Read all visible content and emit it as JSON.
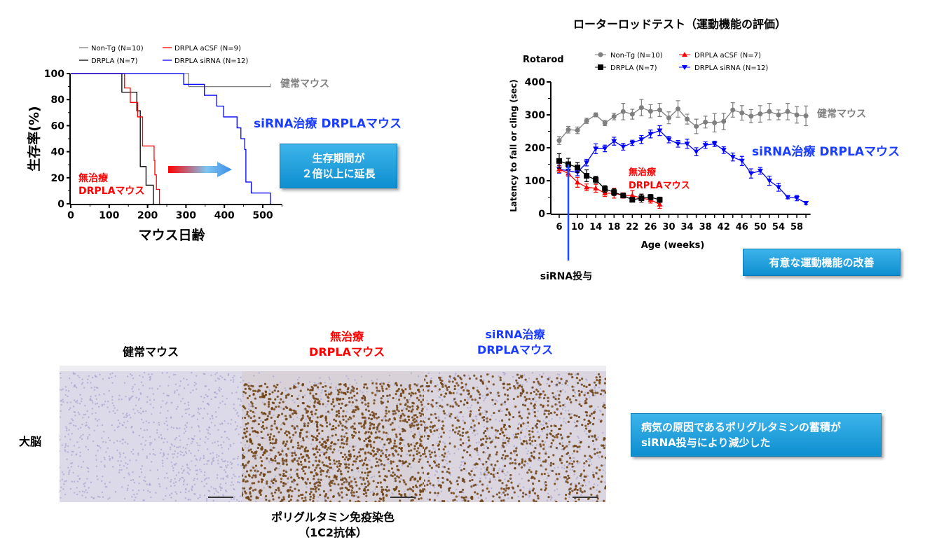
{
  "colors": {
    "nonTg": "#7f7f7f",
    "drpla": "#000000",
    "acsf": "#ff0000",
    "sirna": "#0000ff",
    "box": "#1a9ad8"
  },
  "chart_data": [
    {
      "type": "line",
      "subtype": "kaplan-meier step",
      "xlabel": "マウス日齢",
      "ylabel": "生存率(%)",
      "xlim": [
        0,
        550
      ],
      "ylim": [
        0,
        100
      ],
      "xticks": [
        "0",
        "100",
        "200",
        "300",
        "400",
        "500"
      ],
      "yticks": [
        "0",
        "20",
        "40",
        "60",
        "80",
        "100"
      ],
      "legend_placement": "top",
      "series": [
        {
          "name": "Non-Tg (N=10)",
          "color": "#7f7f7f",
          "steps": [
            [
              0,
              100
            ],
            [
              307,
              90
            ],
            [
              520,
              90
            ]
          ]
        },
        {
          "name": "DRPLA (N=7)",
          "color": "#000000",
          "steps": [
            [
              0,
              100
            ],
            [
              133,
              85.7
            ],
            [
              172,
              71.4
            ],
            [
              181,
              28.6
            ],
            [
              196,
              14.3
            ],
            [
              215,
              0
            ]
          ]
        },
        {
          "name": "DRPLA aCSF (N=9)",
          "color": "#ff0000",
          "steps": [
            [
              0,
              100
            ],
            [
              140,
              88.9
            ],
            [
              155,
              77.8
            ],
            [
              174,
              66.7
            ],
            [
              187,
              44.4
            ],
            [
              217,
              33.3
            ],
            [
              219,
              22.2
            ],
            [
              223,
              11.1
            ],
            [
              231,
              0
            ]
          ]
        },
        {
          "name": "DRPLA siRNA (N=12)",
          "color": "#0000ff",
          "steps": [
            [
              0,
              100
            ],
            [
              294,
              91.7
            ],
            [
              348,
              83.3
            ],
            [
              380,
              75
            ],
            [
              398,
              66.7
            ],
            [
              433,
              58.3
            ],
            [
              443,
              50
            ],
            [
              453,
              41.7
            ],
            [
              456,
              16.7
            ],
            [
              470,
              8.3
            ],
            [
              520,
              0
            ]
          ]
        }
      ],
      "annotations": {
        "healthy": "健常マウス",
        "sirna": "siRNA治療 DRPLAマウス",
        "untreated_1": "無治療",
        "untreated_2": "DRPLAマウス"
      }
    },
    {
      "type": "line",
      "title": "ローターロッドテスト（運動機能の評価）",
      "subtitle": "Rotarod",
      "xlabel": "Age (weeks)",
      "ylabel": "Latency to fall or cling (sec)",
      "xlim": [
        5,
        61
      ],
      "ylim": [
        0,
        400
      ],
      "xticks": [
        "6",
        "10",
        "14",
        "18",
        "22",
        "26",
        "30",
        "34",
        "38",
        "42",
        "46",
        "50",
        "54",
        "58"
      ],
      "yticks": [
        "0",
        "100",
        "200",
        "300",
        "400"
      ],
      "legend_placement": "top",
      "series": [
        {
          "name": "Non-Tg (N=10)",
          "color": "#7f7f7f",
          "marker": "circle",
          "x": [
            6,
            8,
            10,
            12,
            14,
            16,
            18,
            20,
            22,
            24,
            26,
            28,
            30,
            32,
            34,
            36,
            38,
            40,
            42,
            44,
            46,
            48,
            50,
            52,
            54,
            56,
            58,
            60
          ],
          "y": [
            222,
            255,
            253,
            282,
            300,
            275,
            295,
            310,
            302,
            322,
            311,
            315,
            291,
            318,
            287,
            265,
            278,
            276,
            280,
            315,
            306,
            296,
            303,
            310,
            300,
            310,
            300,
            297
          ],
          "err": [
            12,
            10,
            10,
            8,
            6,
            8,
            10,
            25,
            15,
            25,
            20,
            20,
            18,
            25,
            15,
            22,
            18,
            28,
            25,
            22,
            22,
            20,
            25,
            25,
            15,
            25,
            25,
            30
          ]
        },
        {
          "name": "DRPLA (N=7)",
          "color": "#000000",
          "marker": "square",
          "x": [
            6,
            8,
            10,
            12,
            14,
            16,
            18,
            20,
            22,
            24,
            26,
            28
          ],
          "y": [
            160,
            150,
            140,
            115,
            103,
            75,
            65,
            55,
            42,
            47,
            50,
            42
          ],
          "err": [
            22,
            18,
            15,
            18,
            10,
            10,
            10,
            6,
            6,
            12,
            8,
            8
          ]
        },
        {
          "name": "DRPLA aCSF (N=7)",
          "color": "#ff0000",
          "marker": "triangle-up",
          "x": [
            6,
            8,
            10,
            12,
            14,
            16,
            18,
            20,
            22,
            24,
            26,
            28
          ],
          "y": [
            135,
            122,
            95,
            80,
            77,
            62,
            62,
            55,
            55,
            47,
            42,
            28
          ],
          "err": [
            10,
            8,
            15,
            10,
            12,
            10,
            15,
            8,
            15,
            12,
            10,
            12
          ]
        },
        {
          "name": "DRPLA siRNA (N=12)",
          "color": "#0000ff",
          "marker": "triangle-down",
          "x": [
            6,
            8,
            10,
            12,
            14,
            16,
            18,
            20,
            22,
            24,
            26,
            28,
            30,
            32,
            34,
            36,
            38,
            40,
            42,
            44,
            46,
            48,
            50,
            52,
            54,
            56,
            58,
            60
          ],
          "y": [
            135,
            130,
            125,
            155,
            197,
            198,
            220,
            203,
            215,
            225,
            242,
            252,
            225,
            212,
            212,
            188,
            208,
            212,
            193,
            172,
            160,
            122,
            130,
            100,
            80,
            50,
            47,
            32
          ],
          "err": [
            12,
            10,
            10,
            10,
            15,
            10,
            12,
            10,
            8,
            12,
            12,
            15,
            10,
            10,
            14,
            12,
            10,
            8,
            10,
            12,
            14,
            14,
            10,
            14,
            12,
            5,
            8,
            5
          ]
        }
      ],
      "annotations": {
        "healthy": "健常マウス",
        "sirna": "siRNA治療 DRPLAマウス",
        "untreated_1": "無治療",
        "untreated_2": "DRPLAマウス",
        "injection": "siRNA投与",
        "injection_week": 8
      }
    }
  ],
  "boxes": {
    "survival_1": "生存期間が",
    "survival_2": "２倍以上に延長",
    "motor": "有意な運動機能の改善",
    "polyq_1": "病気の原因であるポリグルタミンの蓄積が",
    "polyq_2": "siRNA投与により減少した"
  },
  "histology": {
    "healthy": "健常マウス",
    "untreated_1": "無治療",
    "untreated_2": "DRPLAマウス",
    "sirna_1": "siRNA治療",
    "sirna_2": "DRPLAマウス",
    "row_label": "大脳",
    "caption_1": "ポリグルタミン免疫染色",
    "caption_2": "（1C2抗体）"
  }
}
